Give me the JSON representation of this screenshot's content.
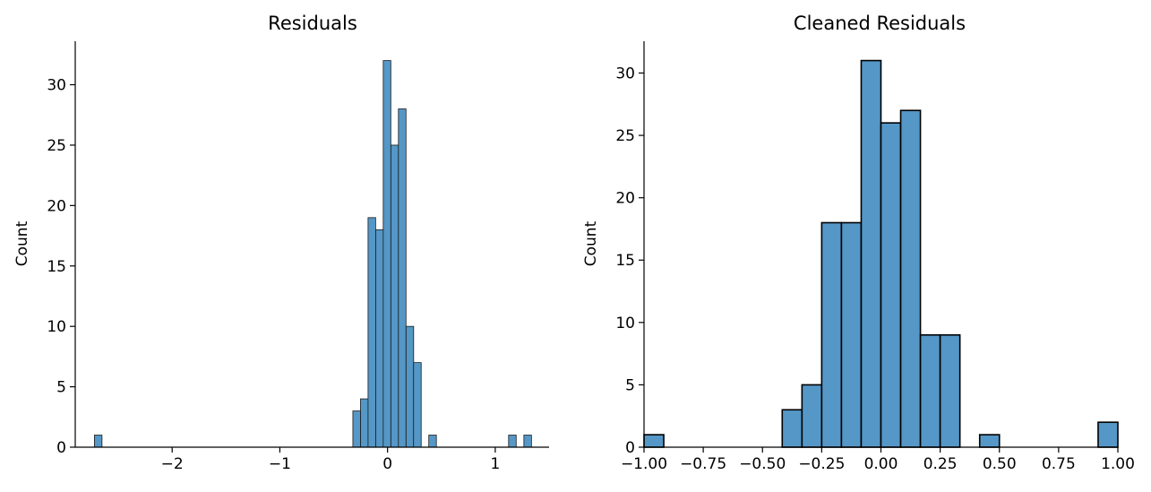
{
  "chart_data": [
    {
      "type": "bar",
      "title": "Residuals",
      "xlabel": "",
      "ylabel": "Count",
      "xlim": [
        -2.9,
        1.5
      ],
      "ylim": [
        0,
        33.6
      ],
      "xticks": [
        -2,
        -1,
        0,
        1
      ],
      "xtick_labels": [
        "−2",
        "−1",
        "0",
        "1"
      ],
      "yticks": [
        0,
        5,
        10,
        15,
        20,
        25,
        30
      ],
      "bin_width": 0.0705,
      "bins": [
        {
          "x0": -2.722,
          "count": 1
        },
        {
          "x0": -0.322,
          "count": 3
        },
        {
          "x0": -0.251,
          "count": 4
        },
        {
          "x0": -0.181,
          "count": 19
        },
        {
          "x0": -0.11,
          "count": 18
        },
        {
          "x0": -0.04,
          "count": 32
        },
        {
          "x0": 0.031,
          "count": 25
        },
        {
          "x0": 0.101,
          "count": 28
        },
        {
          "x0": 0.172,
          "count": 10
        },
        {
          "x0": 0.242,
          "count": 7
        },
        {
          "x0": 0.383,
          "count": 1
        },
        {
          "x0": 1.124,
          "count": 1
        },
        {
          "x0": 1.266,
          "count": 1
        }
      ]
    },
    {
      "type": "bar",
      "title": "Cleaned Residuals",
      "xlabel": "",
      "ylabel": "Count",
      "xlim": [
        -1.0,
        1.0
      ],
      "ylim": [
        0,
        32.55
      ],
      "xticks": [
        -1.0,
        -0.75,
        -0.5,
        -0.25,
        0.0,
        0.25,
        0.5,
        0.75,
        1.0
      ],
      "xtick_labels": [
        "−1.00",
        "−0.75",
        "−0.50",
        "−0.25",
        "0.00",
        "0.25",
        "0.50",
        "0.75",
        "1.00"
      ],
      "yticks": [
        0,
        5,
        10,
        15,
        20,
        25,
        30
      ],
      "bin_width": 0.0833,
      "bins": [
        {
          "x0": -1.0,
          "count": 1
        },
        {
          "x0": -0.4167,
          "count": 3
        },
        {
          "x0": -0.3333,
          "count": 5
        },
        {
          "x0": -0.25,
          "count": 18
        },
        {
          "x0": -0.1667,
          "count": 18
        },
        {
          "x0": -0.0833,
          "count": 31
        },
        {
          "x0": 0.0,
          "count": 26
        },
        {
          "x0": 0.0833,
          "count": 27
        },
        {
          "x0": 0.1667,
          "count": 9
        },
        {
          "x0": 0.25,
          "count": 9
        },
        {
          "x0": 0.4167,
          "count": 1
        },
        {
          "x0": 0.9167,
          "count": 2
        }
      ]
    }
  ],
  "colors": {
    "bar_fill": "#5597c6",
    "edge": "#000000"
  }
}
